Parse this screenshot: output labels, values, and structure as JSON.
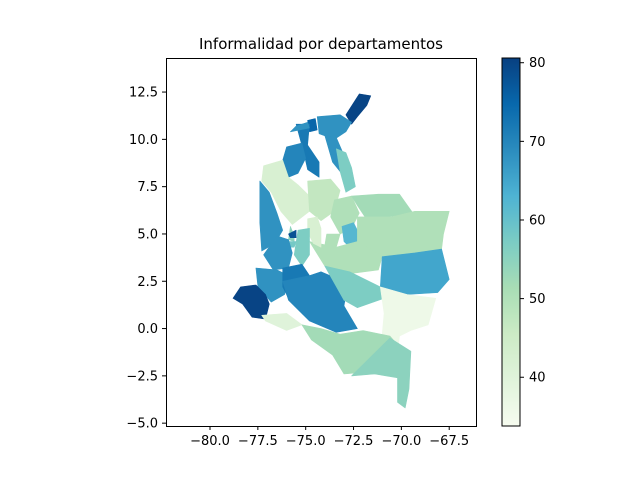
{
  "chart_data": {
    "type": "choropleth",
    "title": "Informalidad por departamentos",
    "xlabel": "",
    "ylabel": "",
    "xlim": [
      -82.3,
      -66.1
    ],
    "ylim": [
      -5.15,
      14.3
    ],
    "x_ticks": [
      -80.0,
      -77.5,
      -75.0,
      -72.5,
      -70.0,
      -67.5
    ],
    "x_tick_labels": [
      "−80.0",
      "−77.5",
      "−75.0",
      "−72.5",
      "−70.0",
      "−67.5"
    ],
    "y_ticks": [
      -5.0,
      -2.5,
      0.0,
      2.5,
      5.0,
      7.5,
      10.0,
      12.5
    ],
    "y_tick_labels": [
      "−5.0",
      "−2.5",
      "0.0",
      "2.5",
      "5.0",
      "7.5",
      "10.0",
      "12.5"
    ],
    "colormap": "GnBu",
    "colorbar": {
      "min": 33.8,
      "max": 80.6,
      "ticks": [
        40,
        50,
        60,
        70,
        80
      ],
      "tick_labels": [
        "40",
        "50",
        "60",
        "70",
        "80"
      ]
    },
    "regions": [
      {
        "value": 80,
        "poly": [
          [
            -72.9,
            11.3
          ],
          [
            -72.2,
            12.4
          ],
          [
            -71.6,
            12.3
          ],
          [
            -71.8,
            11.8
          ],
          [
            -72.3,
            11.2
          ],
          [
            -72.6,
            10.8
          ]
        ]
      },
      {
        "value": 68,
        "poly": [
          [
            -74.4,
            11.2
          ],
          [
            -73.2,
            11.3
          ],
          [
            -72.6,
            10.9
          ],
          [
            -72.9,
            10.4
          ],
          [
            -73.5,
            10.0
          ],
          [
            -74.3,
            10.3
          ]
        ]
      },
      {
        "value": 75,
        "poly": [
          [
            -74.9,
            11.0
          ],
          [
            -74.5,
            11.1
          ],
          [
            -74.4,
            10.5
          ],
          [
            -74.8,
            10.4
          ]
        ]
      },
      {
        "value": 72,
        "poly": [
          [
            -75.5,
            10.8
          ],
          [
            -74.8,
            10.8
          ],
          [
            -74.9,
            9.7
          ],
          [
            -74.3,
            8.8
          ],
          [
            -74.3,
            8.0
          ],
          [
            -74.9,
            8.4
          ],
          [
            -75.1,
            9.3
          ]
        ]
      },
      {
        "value": 68,
        "poly": [
          [
            -75.8,
            10.4
          ],
          [
            -74.8,
            10.6
          ],
          [
            -74.9,
            10.9
          ],
          [
            -75.5,
            10.7
          ]
        ]
      },
      {
        "value": 70,
        "poly": [
          [
            -76.0,
            9.6
          ],
          [
            -75.2,
            9.8
          ],
          [
            -75.0,
            9.0
          ],
          [
            -75.4,
            8.2
          ],
          [
            -75.9,
            8.0
          ],
          [
            -76.2,
            8.9
          ]
        ]
      },
      {
        "value": 68,
        "poly": [
          [
            -74.0,
            10.2
          ],
          [
            -73.4,
            10.1
          ],
          [
            -73.1,
            9.4
          ],
          [
            -73.2,
            8.3
          ],
          [
            -73.6,
            8.8
          ]
        ]
      },
      {
        "value": 57,
        "poly": [
          [
            -73.4,
            9.5
          ],
          [
            -72.9,
            9.3
          ],
          [
            -72.6,
            8.5
          ],
          [
            -72.4,
            7.5
          ],
          [
            -72.9,
            7.2
          ],
          [
            -73.2,
            8.3
          ]
        ]
      },
      {
        "value": 42,
        "poly": [
          [
            -77.2,
            8.6
          ],
          [
            -76.2,
            8.9
          ],
          [
            -75.9,
            8.0
          ],
          [
            -75.4,
            7.6
          ],
          [
            -74.8,
            7.0
          ],
          [
            -74.8,
            6.2
          ],
          [
            -75.7,
            5.5
          ],
          [
            -76.3,
            6.2
          ],
          [
            -76.8,
            7.2
          ],
          [
            -77.3,
            7.8
          ]
        ]
      },
      {
        "value": 68,
        "poly": [
          [
            -77.4,
            7.8
          ],
          [
            -76.9,
            7.2
          ],
          [
            -76.5,
            6.1
          ],
          [
            -76.2,
            5.2
          ],
          [
            -76.6,
            4.5
          ],
          [
            -77.3,
            4.1
          ],
          [
            -77.4,
            5.6
          ]
        ]
      },
      {
        "value": 47,
        "poly": [
          [
            -74.9,
            7.8
          ],
          [
            -73.7,
            7.9
          ],
          [
            -73.2,
            7.3
          ],
          [
            -73.5,
            6.2
          ],
          [
            -74.2,
            5.7
          ],
          [
            -74.8,
            6.2
          ]
        ]
      },
      {
        "value": 50,
        "poly": [
          [
            -73.5,
            6.8
          ],
          [
            -72.6,
            7.0
          ],
          [
            -72.2,
            6.1
          ],
          [
            -72.6,
            5.3
          ],
          [
            -73.2,
            5.0
          ],
          [
            -73.7,
            5.9
          ]
        ]
      },
      {
        "value": 62,
        "poly": [
          [
            -73.1,
            5.4
          ],
          [
            -72.5,
            5.6
          ],
          [
            -72.1,
            4.8
          ],
          [
            -72.6,
            4.2
          ],
          [
            -73.0,
            4.6
          ]
        ]
      },
      {
        "value": 52,
        "poly": [
          [
            -72.6,
            7.0
          ],
          [
            -71.2,
            7.1
          ],
          [
            -70.1,
            7.1
          ],
          [
            -69.4,
            6.1
          ],
          [
            -70.7,
            5.9
          ],
          [
            -71.9,
            5.9
          ],
          [
            -72.3,
            6.5
          ]
        ]
      },
      {
        "value": 50,
        "poly": [
          [
            -72.3,
            5.9
          ],
          [
            -70.5,
            5.9
          ],
          [
            -69.3,
            6.2
          ],
          [
            -67.5,
            6.2
          ],
          [
            -67.8,
            5.0
          ],
          [
            -67.9,
            4.2
          ],
          [
            -69.3,
            4.0
          ],
          [
            -71.0,
            3.8
          ],
          [
            -72.3,
            4.6
          ]
        ]
      },
      {
        "value": 50,
        "poly": [
          [
            -74.8,
            4.6
          ],
          [
            -73.4,
            4.3
          ],
          [
            -72.3,
            4.6
          ],
          [
            -71.0,
            3.8
          ],
          [
            -71.2,
            3.1
          ],
          [
            -72.7,
            2.9
          ],
          [
            -74.0,
            3.3
          ]
        ]
      },
      {
        "value": 65,
        "poly": [
          [
            -71.0,
            3.8
          ],
          [
            -69.3,
            4.0
          ],
          [
            -67.9,
            4.2
          ],
          [
            -67.5,
            2.6
          ],
          [
            -68.1,
            1.9
          ],
          [
            -69.7,
            1.8
          ],
          [
            -71.1,
            2.2
          ]
        ]
      },
      {
        "value": 50,
        "poly": [
          [
            -73.9,
            5.0
          ],
          [
            -73.2,
            5.0
          ],
          [
            -73.4,
            4.3
          ],
          [
            -74.0,
            4.4
          ]
        ]
      },
      {
        "value": 42,
        "poly": [
          [
            -74.9,
            5.8
          ],
          [
            -74.4,
            5.9
          ],
          [
            -74.2,
            5.3
          ],
          [
            -74.2,
            4.3
          ],
          [
            -74.6,
            4.5
          ],
          [
            -74.9,
            5.1
          ]
        ]
      },
      {
        "value": 57,
        "poly": [
          [
            -75.4,
            5.2
          ],
          [
            -74.8,
            5.3
          ],
          [
            -74.8,
            3.9
          ],
          [
            -75.2,
            3.3
          ],
          [
            -75.6,
            3.9
          ]
        ]
      },
      {
        "value": 55,
        "poly": [
          [
            -75.8,
            5.4
          ],
          [
            -75.6,
            4.9
          ],
          [
            -75.6,
            4.6
          ],
          [
            -75.9,
            4.7
          ]
        ]
      },
      {
        "value": 78,
        "poly": [
          [
            -75.9,
            5.0
          ],
          [
            -75.5,
            5.2
          ],
          [
            -75.5,
            4.8
          ],
          [
            -75.8,
            4.8
          ]
        ]
      },
      {
        "value": 58,
        "poly": [
          [
            -75.9,
            4.6
          ],
          [
            -75.5,
            4.6
          ],
          [
            -75.6,
            4.3
          ],
          [
            -75.9,
            4.3
          ]
        ]
      },
      {
        "value": 68,
        "poly": [
          [
            -76.5,
            4.9
          ],
          [
            -75.9,
            4.7
          ],
          [
            -75.7,
            4.0
          ],
          [
            -75.9,
            3.2
          ],
          [
            -76.7,
            3.1
          ],
          [
            -77.2,
            3.9
          ]
        ]
      },
      {
        "value": 68,
        "poly": [
          [
            -77.6,
            3.2
          ],
          [
            -76.5,
            3.1
          ],
          [
            -75.9,
            2.8
          ],
          [
            -76.1,
            1.8
          ],
          [
            -76.8,
            1.4
          ],
          [
            -77.5,
            2.2
          ]
        ]
      },
      {
        "value": 72,
        "poly": [
          [
            -76.2,
            3.2
          ],
          [
            -75.2,
            3.4
          ],
          [
            -74.8,
            2.8
          ],
          [
            -75.2,
            2.0
          ],
          [
            -75.9,
            1.6
          ],
          [
            -76.2,
            2.2
          ]
        ]
      },
      {
        "value": 80,
        "poly": [
          [
            -78.4,
            2.2
          ],
          [
            -77.6,
            2.3
          ],
          [
            -77.1,
            1.8
          ],
          [
            -76.9,
            1.3
          ],
          [
            -77.1,
            0.5
          ],
          [
            -77.8,
            0.6
          ],
          [
            -78.3,
            1.3
          ],
          [
            -78.8,
            1.6
          ]
        ]
      },
      {
        "value": 40,
        "poly": [
          [
            -77.3,
            0.7
          ],
          [
            -76.0,
            0.8
          ],
          [
            -75.2,
            0.2
          ],
          [
            -76.0,
            -0.1
          ],
          [
            -77.1,
            0.4
          ]
        ]
      },
      {
        "value": 70,
        "poly": [
          [
            -76.2,
            2.5
          ],
          [
            -74.8,
            2.8
          ],
          [
            -74.2,
            3.0
          ],
          [
            -72.8,
            2.4
          ],
          [
            -73.0,
            1.2
          ],
          [
            -72.3,
            0.0
          ],
          [
            -73.4,
            -0.2
          ],
          [
            -74.8,
            0.4
          ],
          [
            -75.9,
            1.5
          ]
        ]
      },
      {
        "value": 57,
        "poly": [
          [
            -74.0,
            3.3
          ],
          [
            -72.7,
            3.0
          ],
          [
            -71.1,
            2.2
          ],
          [
            -70.9,
            1.6
          ],
          [
            -72.3,
            1.1
          ],
          [
            -73.0,
            1.5
          ]
        ]
      },
      {
        "value": 36,
        "poly": [
          [
            -71.1,
            2.2
          ],
          [
            -69.7,
            1.8
          ],
          [
            -68.2,
            1.6
          ],
          [
            -68.6,
            0.2
          ],
          [
            -69.5,
            -0.1
          ],
          [
            -70.1,
            -0.4
          ],
          [
            -70.2,
            -1.3
          ],
          [
            -71.0,
            -0.3
          ],
          [
            -70.9,
            0.8
          ]
        ]
      },
      {
        "value": 52,
        "poly": [
          [
            -75.2,
            0.2
          ],
          [
            -74.2,
            0.0
          ],
          [
            -73.2,
            -0.3
          ],
          [
            -72.0,
            -0.1
          ],
          [
            -70.6,
            -0.4
          ],
          [
            -69.9,
            -1.2
          ],
          [
            -69.6,
            -2.3
          ],
          [
            -70.6,
            -2.3
          ],
          [
            -71.8,
            -2.3
          ],
          [
            -73.0,
            -2.4
          ],
          [
            -73.6,
            -1.4
          ],
          [
            -74.7,
            -0.6
          ]
        ]
      },
      {
        "value": 55,
        "poly": [
          [
            -70.6,
            -0.5
          ],
          [
            -69.5,
            -1.2
          ],
          [
            -69.6,
            -3.2
          ],
          [
            -69.8,
            -4.2
          ],
          [
            -70.2,
            -3.9
          ],
          [
            -70.2,
            -2.6
          ],
          [
            -71.4,
            -2.4
          ],
          [
            -72.6,
            -2.5
          ]
        ]
      }
    ]
  }
}
